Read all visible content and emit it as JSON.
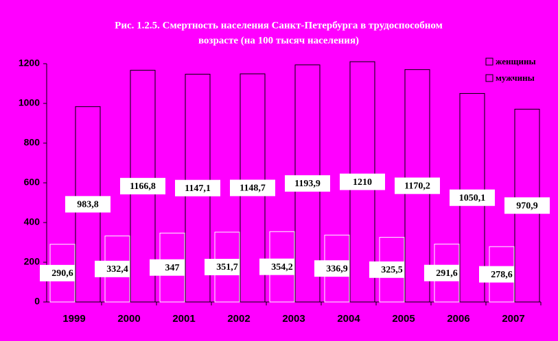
{
  "chart_data": {
    "type": "bar",
    "title": [
      "Рис. 1.2.5. Смертность населения Санкт-Петербурга в трудоспособном",
      "возрасте (на 100 тысяч населения)"
    ],
    "categories": [
      "1999",
      "2000",
      "2001",
      "2002",
      "2003",
      "2004",
      "2005",
      "2006",
      "2007"
    ],
    "series": [
      {
        "name": "женщины",
        "color": "#ff00ff",
        "values": [
          290.6,
          332.4,
          347,
          351.7,
          354.2,
          336.9,
          325.5,
          291.6,
          278.6
        ],
        "value_labels": [
          "290,6",
          "332,4",
          "347",
          "351,7",
          "354,2",
          "336,9",
          "325,5",
          "291,6",
          "278,6"
        ]
      },
      {
        "name": "мужчины",
        "color": "#ff00ff",
        "values": [
          983.8,
          1166.8,
          1147.1,
          1148.7,
          1193.9,
          1210,
          1170.2,
          1050.1,
          970.9
        ],
        "value_labels": [
          "983,8",
          "1166,8",
          "1147,1",
          "1148,7",
          "1193,9",
          "1210",
          "1170,2",
          "1050,1",
          "970,9"
        ]
      }
    ],
    "ylim": [
      0,
      1200
    ],
    "yticks": [
      0,
      200,
      400,
      600,
      800,
      1000,
      1200
    ],
    "legend": "top-right"
  }
}
